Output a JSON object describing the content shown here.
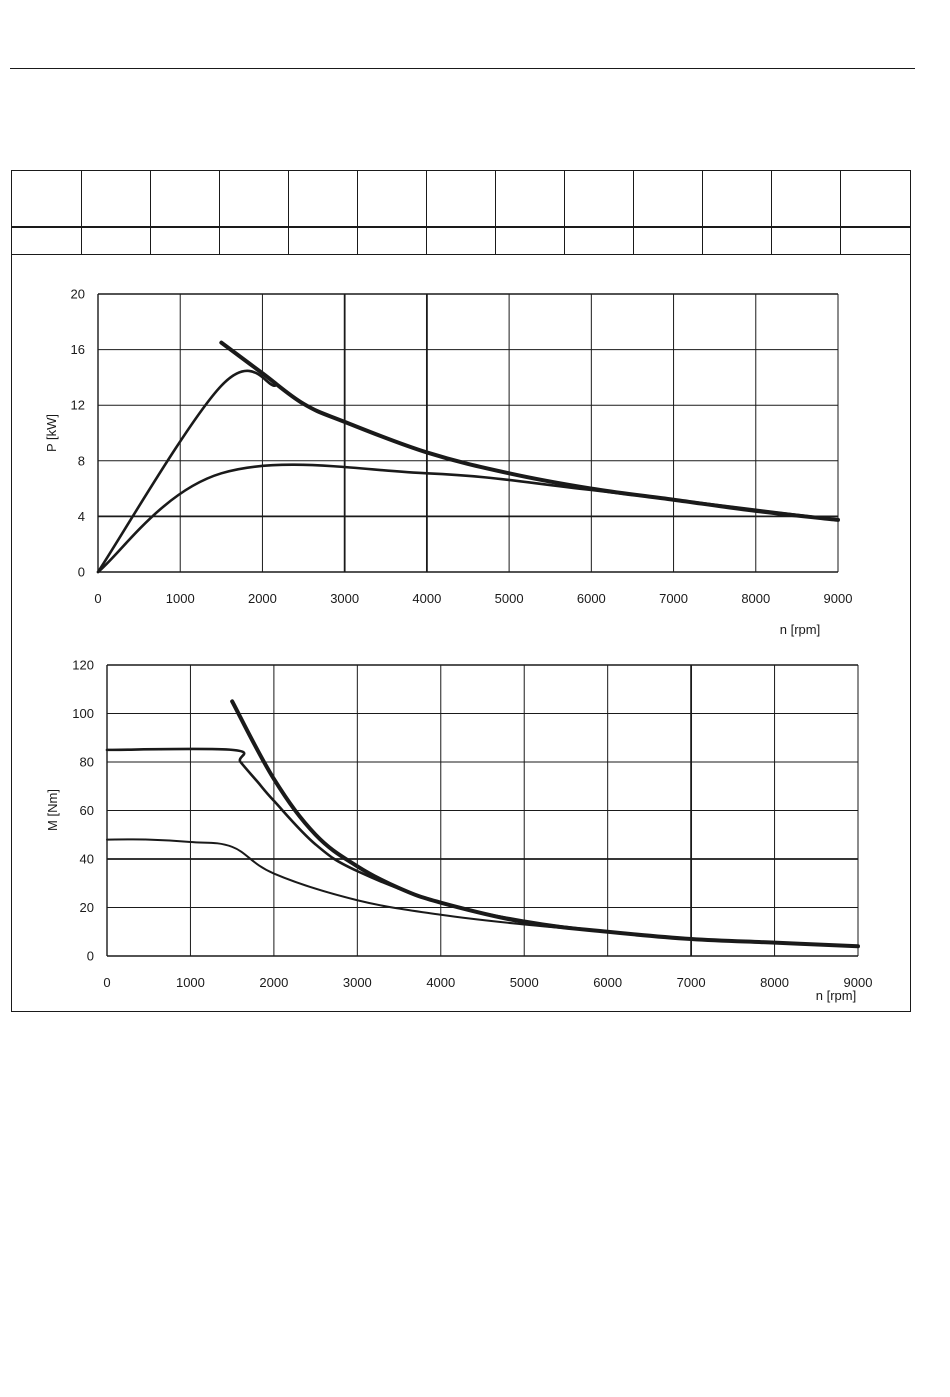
{
  "header_table": {
    "columns": 13,
    "rows": [
      [
        "",
        "",
        "",
        "",
        "",
        "",
        "",
        "",
        "",
        "",
        "",
        "",
        ""
      ],
      [
        "",
        "",
        "",
        "",
        "",
        "",
        "",
        "",
        "",
        "",
        "",
        "",
        ""
      ]
    ]
  },
  "chart_data": [
    {
      "type": "line",
      "xlabel": "n [rpm]",
      "ylabel": "P [kW]",
      "xlim": [
        0,
        9000
      ],
      "ylim": [
        0,
        20
      ],
      "xticks": [
        0,
        1000,
        2000,
        3000,
        4000,
        5000,
        6000,
        7000,
        8000,
        9000
      ],
      "yticks": [
        0,
        4,
        8,
        12,
        16,
        20
      ],
      "grid": true,
      "series": [
        {
          "style": "thick",
          "x": [
            1500,
            2000,
            2500,
            3000,
            4000,
            5000,
            6000,
            7000,
            8000,
            9000
          ],
          "y": [
            16.5,
            14.3,
            12.1,
            10.8,
            8.6,
            7.1,
            6.0,
            5.2,
            4.4,
            3.75
          ]
        },
        {
          "style": "medium",
          "x": [
            0,
            1500,
            2150
          ],
          "y": [
            0,
            13.4,
            13.4
          ]
        },
        {
          "style": "medium",
          "x": [
            0,
            1500,
            4000,
            6000,
            9000
          ],
          "y": [
            0,
            7.1,
            7.1,
            5.9,
            3.75
          ]
        }
      ]
    },
    {
      "type": "line",
      "xlabel": "n [rpm]",
      "ylabel": "M [Nm]",
      "xlim": [
        0,
        9000
      ],
      "ylim": [
        0,
        120
      ],
      "xticks": [
        0,
        1000,
        2000,
        3000,
        4000,
        5000,
        6000,
        7000,
        8000,
        9000
      ],
      "yticks": [
        0,
        20,
        40,
        60,
        80,
        100,
        120
      ],
      "grid": true,
      "series": [
        {
          "style": "thick",
          "x": [
            1500,
            2000,
            2500,
            3000,
            3500,
            4000,
            5000,
            6000,
            7000,
            8000,
            9000
          ],
          "y": [
            105,
            73,
            50,
            37,
            28,
            22,
            14,
            10,
            7,
            5.5,
            4
          ]
        },
        {
          "style": "medium",
          "x": [
            0,
            1500,
            1600,
            1800,
            2000,
            2500,
            3000,
            4000,
            5000,
            6000,
            7000,
            8000,
            9000
          ],
          "y": [
            85,
            85,
            80,
            72,
            64,
            46,
            35,
            22,
            14.5,
            10,
            7,
            5.5,
            4
          ]
        },
        {
          "style": "thin",
          "x": [
            0,
            500,
            1000,
            1500,
            2000,
            3000,
            4000,
            5000,
            6000,
            7000,
            8000,
            9000
          ],
          "y": [
            48,
            48,
            47,
            45,
            34,
            23,
            17,
            13,
            10,
            7,
            5.5,
            4
          ]
        }
      ]
    }
  ]
}
